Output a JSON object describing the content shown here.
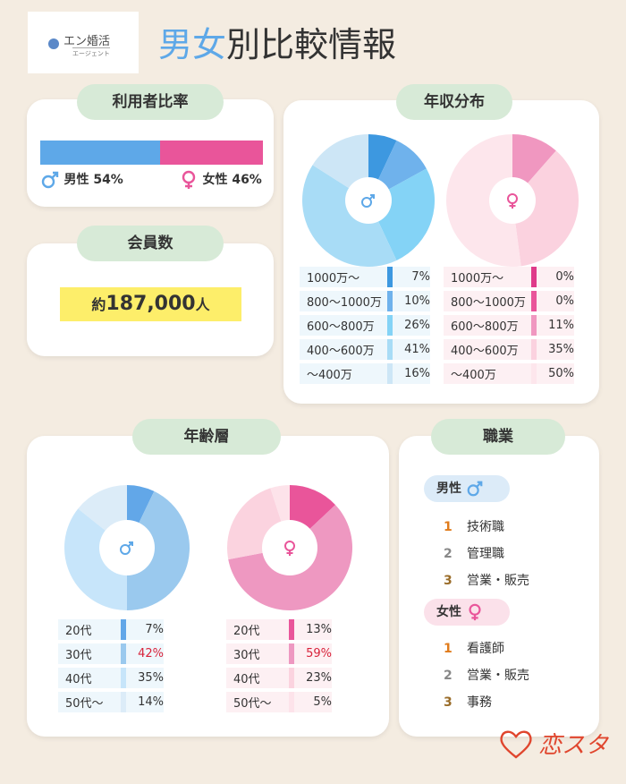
{
  "header": {
    "logo_text": "エン婚活",
    "logo_sub": "エージェント",
    "title_part1": "男女",
    "title_part2": "別比較情報"
  },
  "ratio": {
    "pill": "利用者比率",
    "male_label": "男性 54%",
    "female_label": "女性 46%",
    "male_share": 54,
    "female_share": 46
  },
  "members": {
    "pill": "会員数",
    "prefix": "約",
    "count": "187,000",
    "suffix": "人"
  },
  "income": {
    "pill": "年収分布"
  },
  "age": {
    "pill": "年齢層"
  },
  "occupation": {
    "pill": "職業",
    "male_label": "男性",
    "female_label": "女性",
    "male": [
      {
        "rank": "1",
        "name": "技術職"
      },
      {
        "rank": "2",
        "name": "管理職"
      },
      {
        "rank": "3",
        "name": "営業・販売"
      }
    ],
    "female": [
      {
        "rank": "1",
        "name": "看護師"
      },
      {
        "rank": "2",
        "name": "営業・販売"
      },
      {
        "rank": "3",
        "name": "事務"
      }
    ]
  },
  "footer": {
    "brand": "恋スタ"
  },
  "colors": {
    "male": "#5ea8e8",
    "female": "#e9559a",
    "pill_bg": "#d7ead7",
    "rank1": "#e07b1b",
    "rank2": "#888888",
    "rank3": "#9a6d2a",
    "highlight": "#d8233b"
  },
  "chart_data": [
    {
      "type": "pie",
      "id": "income_male",
      "categories": [
        "1000万〜",
        "800〜1000万",
        "600〜800万",
        "400〜600万",
        "〜400万"
      ],
      "values": [
        7,
        10,
        26,
        41,
        16
      ],
      "labels": [
        "7%",
        "10%",
        "26%",
        "41%",
        "16%"
      ],
      "colors": [
        "#3d98e0",
        "#6fb2ec",
        "#84d3f6",
        "#a8dcf6",
        "#cde6f6"
      ]
    },
    {
      "type": "pie",
      "id": "income_female",
      "categories": [
        "1000万〜",
        "800〜1000万",
        "600〜800万",
        "400〜600万",
        "〜400万"
      ],
      "values": [
        0,
        0,
        11,
        35,
        50
      ],
      "labels": [
        "0%",
        "0%",
        "11%",
        "35%",
        "50%"
      ],
      "colors": [
        "#df3b8a",
        "#e9559a",
        "#f097c0",
        "#fbd2df",
        "#fde6ec"
      ]
    },
    {
      "type": "pie",
      "id": "age_male",
      "categories": [
        "20代",
        "30代",
        "40代",
        "50代〜"
      ],
      "values": [
        7,
        42,
        35,
        14
      ],
      "labels": [
        "7%",
        "42%",
        "35%",
        "14%"
      ],
      "colors": [
        "#62a7e8",
        "#9ac9ee",
        "#c7e5fa",
        "#dcecf8"
      ]
    },
    {
      "type": "pie",
      "id": "age_female",
      "categories": [
        "20代",
        "30代",
        "40代",
        "50代〜"
      ],
      "values": [
        13,
        59,
        23,
        5
      ],
      "labels": [
        "13%",
        "59%",
        "23%",
        "5%"
      ],
      "colors": [
        "#e9559a",
        "#ee98c1",
        "#fbd3df",
        "#fde3ea"
      ]
    }
  ]
}
